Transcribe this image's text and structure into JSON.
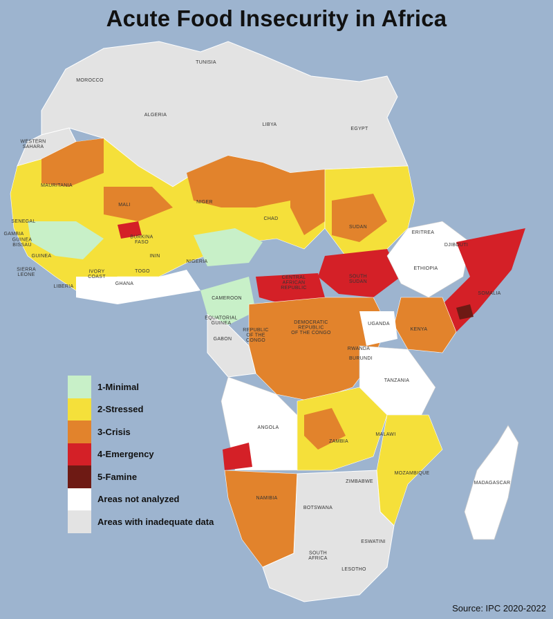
{
  "title": "Acute Food Insecurity  in Africa",
  "legend": [
    {
      "label": "1-Minimal",
      "color": "#c8f0c8"
    },
    {
      "label": "2-Stressed",
      "color": "#f5e03a"
    },
    {
      "label": "3-Crisis",
      "color": "#e2832c"
    },
    {
      "label": "4-Emergency",
      "color": "#d42027"
    },
    {
      "label": "5-Famine",
      "color": "#6e1a14"
    },
    {
      "label": "Areas not analyzed",
      "color": "#ffffff"
    },
    {
      "label": "Areas with inadequate data",
      "color": "#e3e3e3"
    }
  ],
  "countries": {
    "tunisia": "TUNISIA",
    "morocco": "MOROCCO",
    "algeria": "ALGERIA",
    "libya": "LIBYA",
    "egypt": "EGYPT",
    "western_sahara": "WESTERN\nSAHARA",
    "mauritania": "MAURITANIA",
    "mali": "MALI",
    "niger": "NIGER",
    "chad": "CHAD",
    "sudan": "SUDAN",
    "eritrea": "ERITREA",
    "djibouti": "DJIBOUTI",
    "ethiopia": "ETHIOPIA",
    "somalia": "SOMALIA",
    "senegal": "SENEGAL",
    "gambia": "GAMBIA",
    "guinea_bissau": "GUINEA\nBISSAU",
    "guinea": "GUINEA",
    "sierra_leone": "SIERRA\nLEONE",
    "liberia": "LIBERIA",
    "ivory_coast": "IVORY\nCOAST",
    "burkina_faso": "BURKINA\nFASO",
    "ghana": "GHANA",
    "togo": "TOGO",
    "benin": "ININ",
    "nigeria": "NIGERIA",
    "cameroon": "CAMEROON",
    "central_african_republic": "CENTRAL\nAFRICAN\nREPUBLIC",
    "south_sudan": "SOUTH\nSUDAN",
    "uganda": "UGANDA",
    "kenya": "KENYA",
    "equatorial_guinea": "EQUATORIAL\nGUINEA",
    "gabon": "GABON",
    "republic_of_the_congo": "REPUBLIC\nOF THE\nCONGO",
    "drc": "DEMOCRATIC\nREPUBLIC\nOF THE CONGO",
    "rwanda": "RWANDA",
    "burundi": "BURUNDI",
    "tanzania": "TANZANIA",
    "angola": "ANGOLA",
    "zambia": "ZAMBIA",
    "malawi": "MALAWI",
    "mozambique": "MOZAMBIQUE",
    "zimbabwe": "ZIMBABWE",
    "namibia": "NAMIBIA",
    "botswana": "BOTSWANA",
    "madagascar": "MADAGASCAR",
    "south_africa": "SOUTH\nAFRICA",
    "eswatini": "ESWATINI",
    "lesotho": "LESOTHO"
  },
  "source": "Source: IPC 2020-2022"
}
